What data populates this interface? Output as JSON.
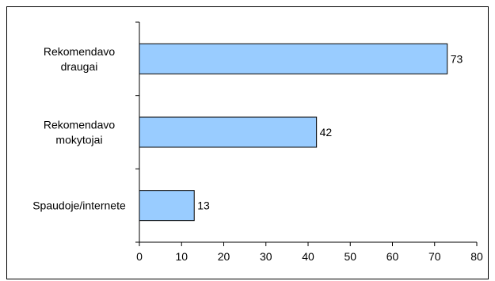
{
  "chart_data": {
    "type": "bar",
    "orientation": "horizontal",
    "categories": [
      [
        "Rekomendavo",
        "draugai"
      ],
      [
        "Rekomendavo",
        "mokytojai"
      ],
      [
        "Spaudoje/internete"
      ]
    ],
    "values": [
      73,
      42,
      13
    ],
    "data_labels": [
      "73",
      "42",
      "13"
    ],
    "xlim": [
      0,
      80
    ],
    "x_ticks": [
      "0",
      "10",
      "20",
      "30",
      "40",
      "50",
      "60",
      "70",
      "80"
    ],
    "title": "",
    "xlabel": "",
    "ylabel": "",
    "grid": false,
    "legend": "none",
    "bar_color": "#99ccff",
    "bar_edge_color": "#000000"
  }
}
